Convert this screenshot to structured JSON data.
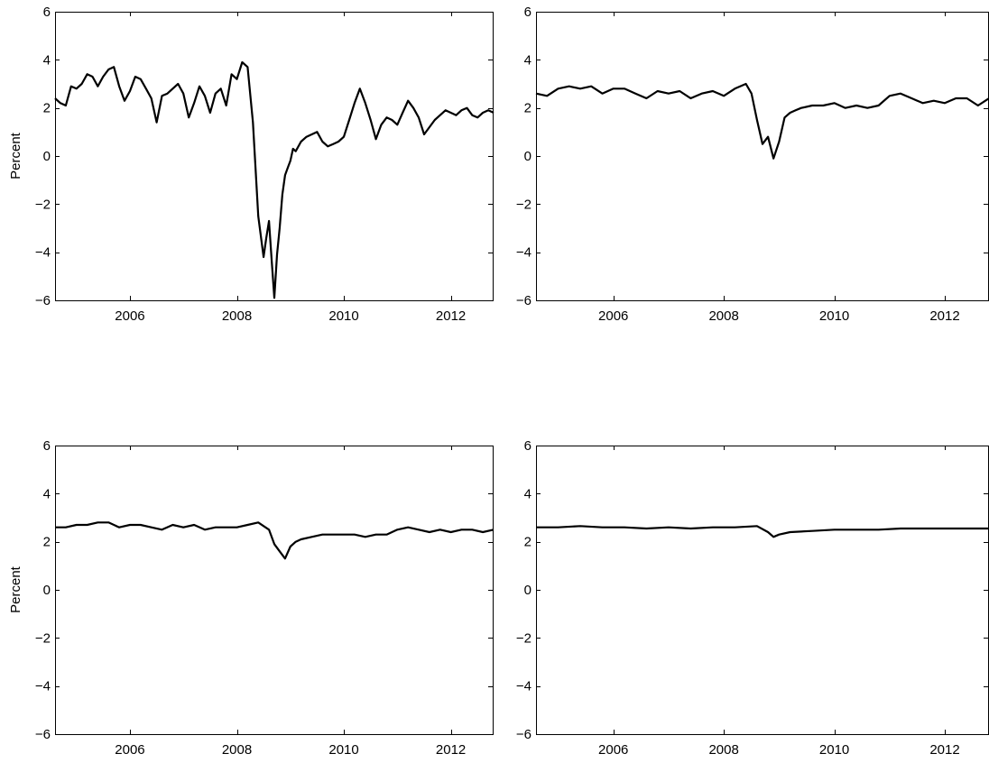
{
  "chart_data": [
    {
      "type": "line",
      "title": "",
      "xlabel": "",
      "ylabel": "Percent",
      "xlim": [
        2004.6,
        2012.8
      ],
      "ylim": [
        -6,
        6
      ],
      "xticks": [
        2006,
        2008,
        2010,
        2012
      ],
      "xtick_labels": [
        "2006",
        "2008",
        "2010",
        "2012"
      ],
      "yticks": [
        -6,
        -4,
        -2,
        0,
        2,
        4,
        6
      ],
      "ytick_labels": [
        "−6",
        "−4",
        "−2",
        "0",
        "2",
        "4",
        "6"
      ],
      "grid": false,
      "series": [
        {
          "x": [
            2004.6,
            2004.7,
            2004.8,
            2004.9,
            2005.0,
            2005.1,
            2005.2,
            2005.3,
            2005.4,
            2005.5,
            2005.6,
            2005.7,
            2005.8,
            2005.9,
            2006.0,
            2006.1,
            2006.2,
            2006.3,
            2006.4,
            2006.5,
            2006.6,
            2006.7,
            2006.8,
            2006.9,
            2007.0,
            2007.1,
            2007.2,
            2007.3,
            2007.4,
            2007.5,
            2007.6,
            2007.7,
            2007.8,
            2007.9,
            2008.0,
            2008.1,
            2008.2,
            2008.3,
            2008.4,
            2008.5,
            2008.55,
            2008.6,
            2008.65,
            2008.7,
            2008.75,
            2008.8,
            2008.85,
            2008.9,
            2008.95,
            2009.0,
            2009.05,
            2009.1,
            2009.2,
            2009.3,
            2009.4,
            2009.5,
            2009.6,
            2009.7,
            2009.8,
            2009.9,
            2010.0,
            2010.1,
            2010.2,
            2010.3,
            2010.4,
            2010.5,
            2010.6,
            2010.7,
            2010.8,
            2010.9,
            2011.0,
            2011.1,
            2011.2,
            2011.3,
            2011.4,
            2011.5,
            2011.6,
            2011.7,
            2011.8,
            2011.9,
            2012.0,
            2012.1,
            2012.2,
            2012.3,
            2012.4,
            2012.5,
            2012.6,
            2012.7,
            2012.8
          ],
          "values": [
            2.4,
            2.2,
            2.1,
            2.9,
            2.8,
            3.0,
            3.4,
            3.3,
            2.9,
            3.3,
            3.6,
            3.7,
            2.9,
            2.3,
            2.7,
            3.3,
            3.2,
            2.8,
            2.4,
            1.4,
            2.5,
            2.6,
            2.8,
            3.0,
            2.6,
            1.6,
            2.2,
            2.9,
            2.5,
            1.8,
            2.6,
            2.8,
            2.1,
            3.4,
            3.2,
            3.9,
            3.7,
            1.4,
            -2.5,
            -4.2,
            -3.4,
            -2.7,
            -4.3,
            -5.9,
            -4.1,
            -3.0,
            -1.6,
            -0.8,
            -0.5,
            -0.2,
            0.3,
            0.2,
            0.6,
            0.8,
            0.9,
            1.0,
            0.6,
            0.4,
            0.5,
            0.6,
            0.8,
            1.5,
            2.2,
            2.8,
            2.2,
            1.5,
            0.7,
            1.3,
            1.6,
            1.5,
            1.3,
            1.8,
            2.3,
            2.0,
            1.6,
            0.9,
            1.2,
            1.5,
            1.7,
            1.9,
            1.8,
            1.7,
            1.9,
            2.0,
            1.7,
            1.6,
            1.8,
            1.9,
            1.8
          ]
        }
      ]
    },
    {
      "type": "line",
      "title": "",
      "xlabel": "",
      "ylabel": "",
      "xlim": [
        2004.6,
        2012.8
      ],
      "ylim": [
        -6,
        6
      ],
      "xticks": [
        2006,
        2008,
        2010,
        2012
      ],
      "xtick_labels": [
        "2006",
        "2008",
        "2010",
        "2012"
      ],
      "yticks": [
        -6,
        -4,
        -2,
        0,
        2,
        4,
        6
      ],
      "ytick_labels": [
        "−6",
        "−4",
        "−2",
        "0",
        "2",
        "4",
        "6"
      ],
      "grid": false,
      "series": [
        {
          "x": [
            2004.6,
            2004.8,
            2005.0,
            2005.2,
            2005.4,
            2005.6,
            2005.8,
            2006.0,
            2006.2,
            2006.4,
            2006.6,
            2006.8,
            2007.0,
            2007.2,
            2007.4,
            2007.6,
            2007.8,
            2008.0,
            2008.2,
            2008.4,
            2008.5,
            2008.6,
            2008.7,
            2008.8,
            2008.9,
            2009.0,
            2009.1,
            2009.2,
            2009.3,
            2009.4,
            2009.6,
            2009.8,
            2010.0,
            2010.2,
            2010.4,
            2010.6,
            2010.8,
            2011.0,
            2011.2,
            2011.4,
            2011.6,
            2011.8,
            2012.0,
            2012.2,
            2012.4,
            2012.6,
            2012.8
          ],
          "values": [
            2.6,
            2.5,
            2.8,
            2.9,
            2.8,
            2.9,
            2.6,
            2.8,
            2.8,
            2.6,
            2.4,
            2.7,
            2.6,
            2.7,
            2.4,
            2.6,
            2.7,
            2.5,
            2.8,
            3.0,
            2.6,
            1.5,
            0.5,
            0.8,
            -0.1,
            0.6,
            1.6,
            1.8,
            1.9,
            2.0,
            2.1,
            2.1,
            2.2,
            2.0,
            2.1,
            2.0,
            2.1,
            2.5,
            2.6,
            2.4,
            2.2,
            2.3,
            2.2,
            2.4,
            2.4,
            2.1,
            2.4
          ]
        }
      ]
    },
    {
      "type": "line",
      "title": "",
      "xlabel": "",
      "ylabel": "Percent",
      "xlim": [
        2004.6,
        2012.8
      ],
      "ylim": [
        -6,
        6
      ],
      "xticks": [
        2006,
        2008,
        2010,
        2012
      ],
      "xtick_labels": [
        "2006",
        "2008",
        "2010",
        "2012"
      ],
      "yticks": [
        -6,
        -4,
        -2,
        0,
        2,
        4,
        6
      ],
      "ytick_labels": [
        "−6",
        "−4",
        "−2",
        "0",
        "2",
        "4",
        "6"
      ],
      "grid": false,
      "series": [
        {
          "x": [
            2004.6,
            2004.8,
            2005.0,
            2005.2,
            2005.4,
            2005.6,
            2005.8,
            2006.0,
            2006.2,
            2006.4,
            2006.6,
            2006.8,
            2007.0,
            2007.2,
            2007.4,
            2007.6,
            2007.8,
            2008.0,
            2008.2,
            2008.4,
            2008.6,
            2008.7,
            2008.8,
            2008.9,
            2009.0,
            2009.1,
            2009.2,
            2009.4,
            2009.6,
            2009.8,
            2010.0,
            2010.2,
            2010.4,
            2010.6,
            2010.8,
            2011.0,
            2011.2,
            2011.4,
            2011.6,
            2011.8,
            2012.0,
            2012.2,
            2012.4,
            2012.6,
            2012.8
          ],
          "values": [
            2.6,
            2.6,
            2.7,
            2.7,
            2.8,
            2.8,
            2.6,
            2.7,
            2.7,
            2.6,
            2.5,
            2.7,
            2.6,
            2.7,
            2.5,
            2.6,
            2.6,
            2.6,
            2.7,
            2.8,
            2.5,
            1.9,
            1.6,
            1.3,
            1.8,
            2.0,
            2.1,
            2.2,
            2.3,
            2.3,
            2.3,
            2.3,
            2.2,
            2.3,
            2.3,
            2.5,
            2.6,
            2.5,
            2.4,
            2.5,
            2.4,
            2.5,
            2.5,
            2.4,
            2.5
          ]
        }
      ]
    },
    {
      "type": "line",
      "title": "",
      "xlabel": "",
      "ylabel": "",
      "xlim": [
        2004.6,
        2012.8
      ],
      "ylim": [
        -6,
        6
      ],
      "xticks": [
        2006,
        2008,
        2010,
        2012
      ],
      "xtick_labels": [
        "2006",
        "2008",
        "2010",
        "2012"
      ],
      "yticks": [
        -6,
        -4,
        -2,
        0,
        2,
        4,
        6
      ],
      "ytick_labels": [
        "−6",
        "−4",
        "−2",
        "0",
        "2",
        "4",
        "6"
      ],
      "grid": false,
      "series": [
        {
          "x": [
            2004.6,
            2005.0,
            2005.4,
            2005.8,
            2006.2,
            2006.6,
            2007.0,
            2007.4,
            2007.8,
            2008.2,
            2008.6,
            2008.8,
            2008.9,
            2009.0,
            2009.2,
            2009.6,
            2010.0,
            2010.4,
            2010.8,
            2011.2,
            2011.6,
            2012.0,
            2012.4,
            2012.8
          ],
          "values": [
            2.6,
            2.6,
            2.65,
            2.6,
            2.6,
            2.55,
            2.6,
            2.55,
            2.6,
            2.6,
            2.65,
            2.4,
            2.2,
            2.3,
            2.4,
            2.45,
            2.5,
            2.5,
            2.5,
            2.55,
            2.55,
            2.55,
            2.55,
            2.55
          ]
        }
      ]
    }
  ]
}
